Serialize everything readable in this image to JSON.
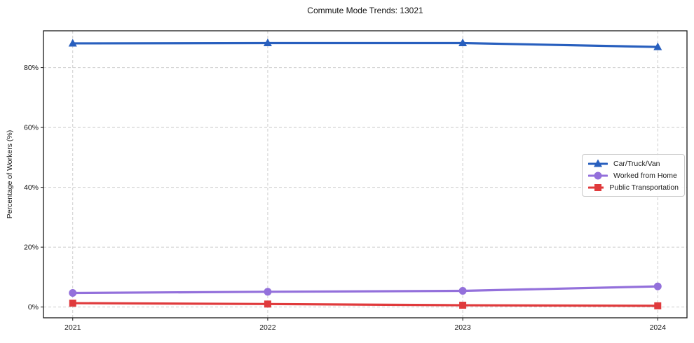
{
  "figure": {
    "background_color": "#ffffff",
    "spine_color": "#1a1a1a",
    "grid_color": "#cdcdcd",
    "grid_style": "dashed"
  },
  "chart_data": {
    "type": "line",
    "title": "Commute Mode Trends: 13021",
    "xlabel": "",
    "ylabel": "Percentage of Workers (%)",
    "x": [
      2021,
      2022,
      2023,
      2024
    ],
    "xticklabels": [
      "2021",
      "2022",
      "2023",
      "2024"
    ],
    "yticks": [
      0,
      20,
      40,
      60,
      80
    ],
    "yticklabels": [
      "0%",
      "20%",
      "40%",
      "60%",
      "80%"
    ],
    "xlim": [
      2020.85,
      2024.15
    ],
    "ylim": [
      -3.6,
      92.3
    ],
    "grid": "dashed-both-axes",
    "legend_position": "center-right",
    "series": [
      {
        "name": "Car/Truck/Van",
        "color": "#285fbe",
        "marker": "triangle",
        "values": [
          88.1,
          88.2,
          88.2,
          86.9
        ]
      },
      {
        "name": "Worked from Home",
        "color": "#9370db",
        "marker": "circle",
        "values": [
          4.7,
          5.1,
          5.4,
          6.9
        ]
      },
      {
        "name": "Public Transportation",
        "color": "#e03a3c",
        "marker": "square",
        "values": [
          1.3,
          1.0,
          0.6,
          0.4
        ]
      }
    ]
  }
}
